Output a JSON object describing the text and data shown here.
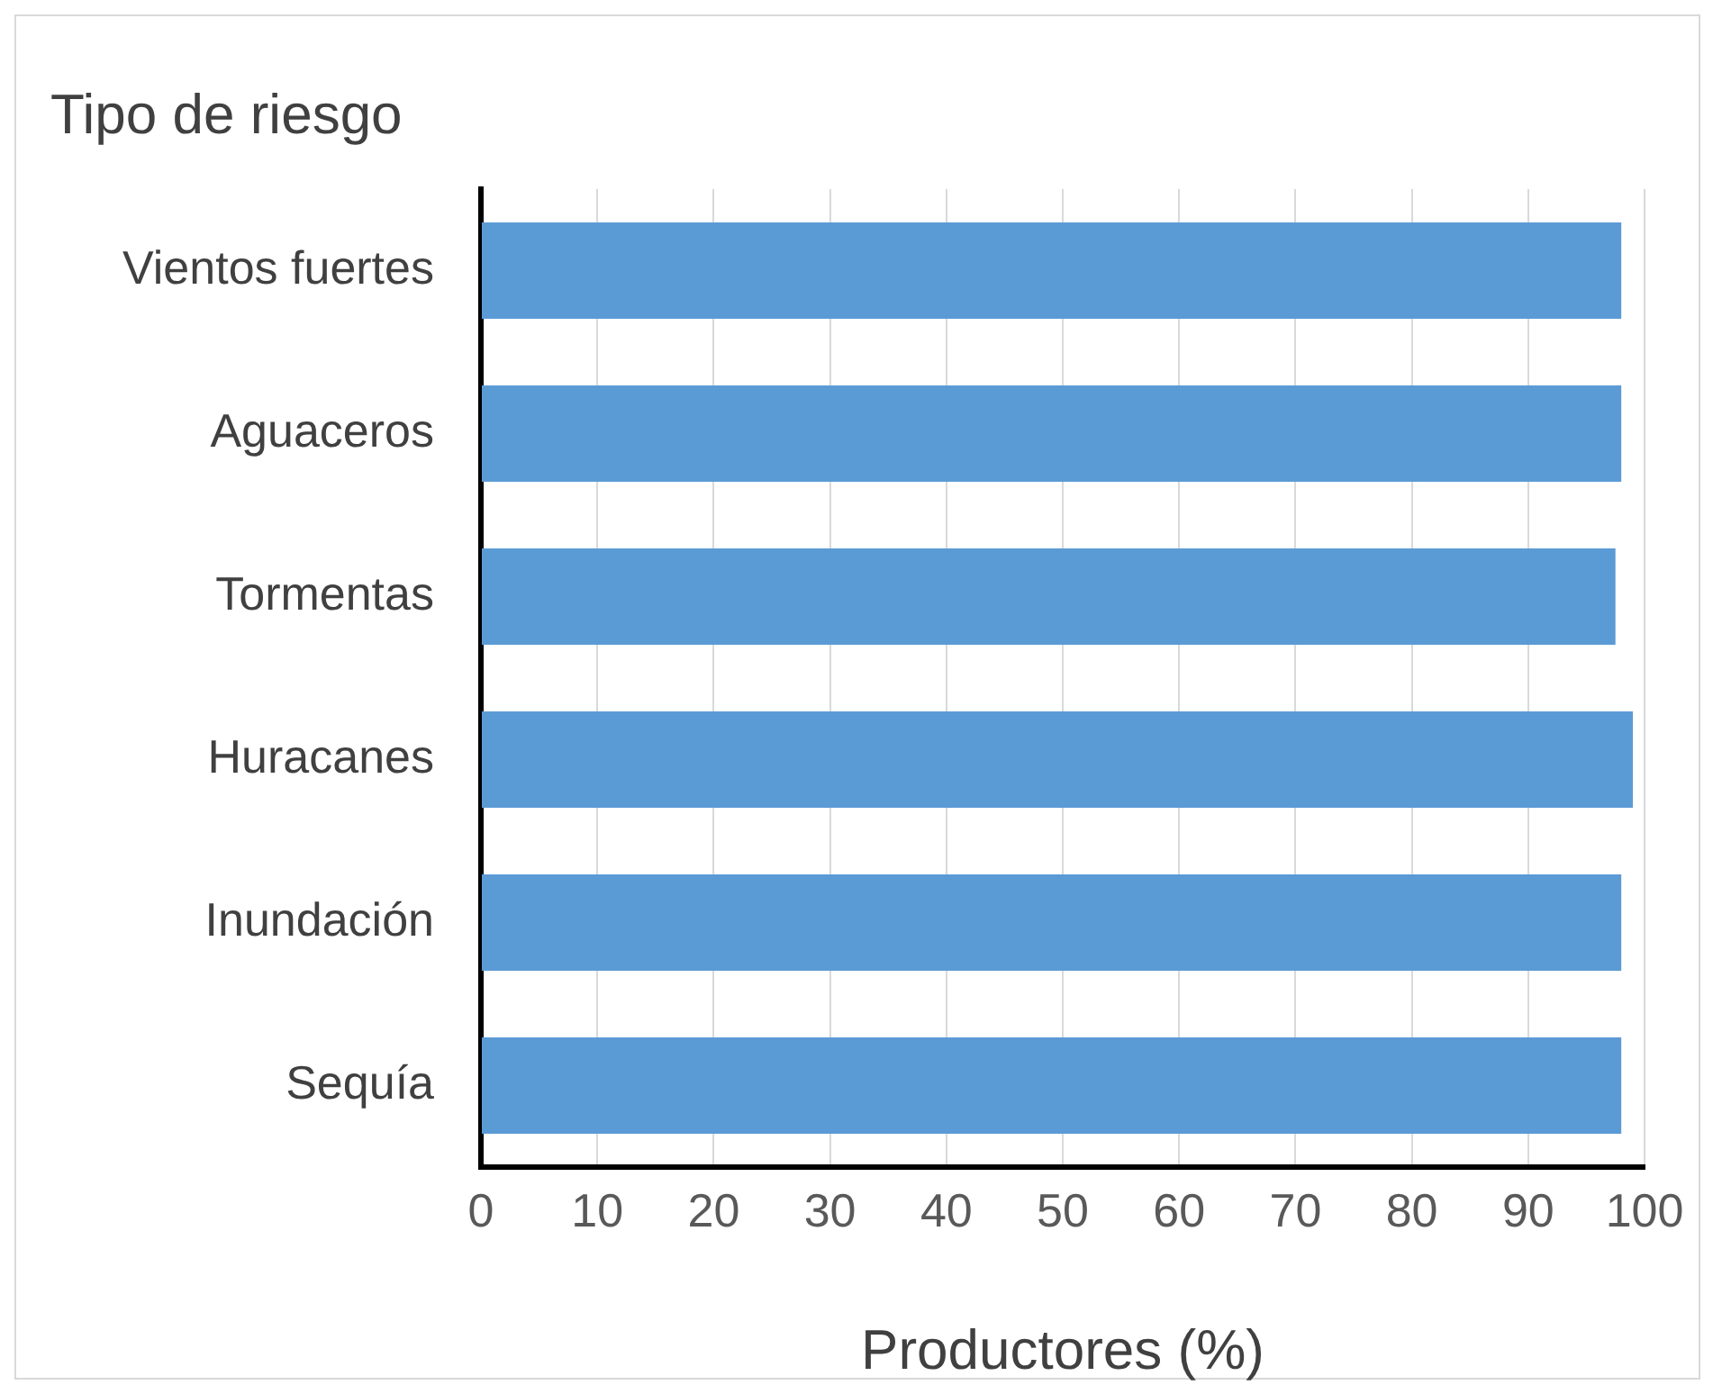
{
  "chart_data": {
    "type": "bar",
    "orientation": "horizontal",
    "ylabel": "Tipo de riesgo",
    "xlabel": "Productores (%)",
    "categories": [
      "Vientos fuertes",
      "Aguaceros",
      "Tormentas",
      "Huracanes",
      "Inundación",
      "Sequía"
    ],
    "values": [
      98,
      98,
      97.5,
      99,
      98,
      98
    ],
    "color": "#5b9bd5",
    "xlim": [
      0,
      100
    ],
    "xticks": [
      0,
      10,
      20,
      30,
      40,
      50,
      60,
      70,
      80,
      90,
      100
    ],
    "grid": "x",
    "legend": false
  }
}
